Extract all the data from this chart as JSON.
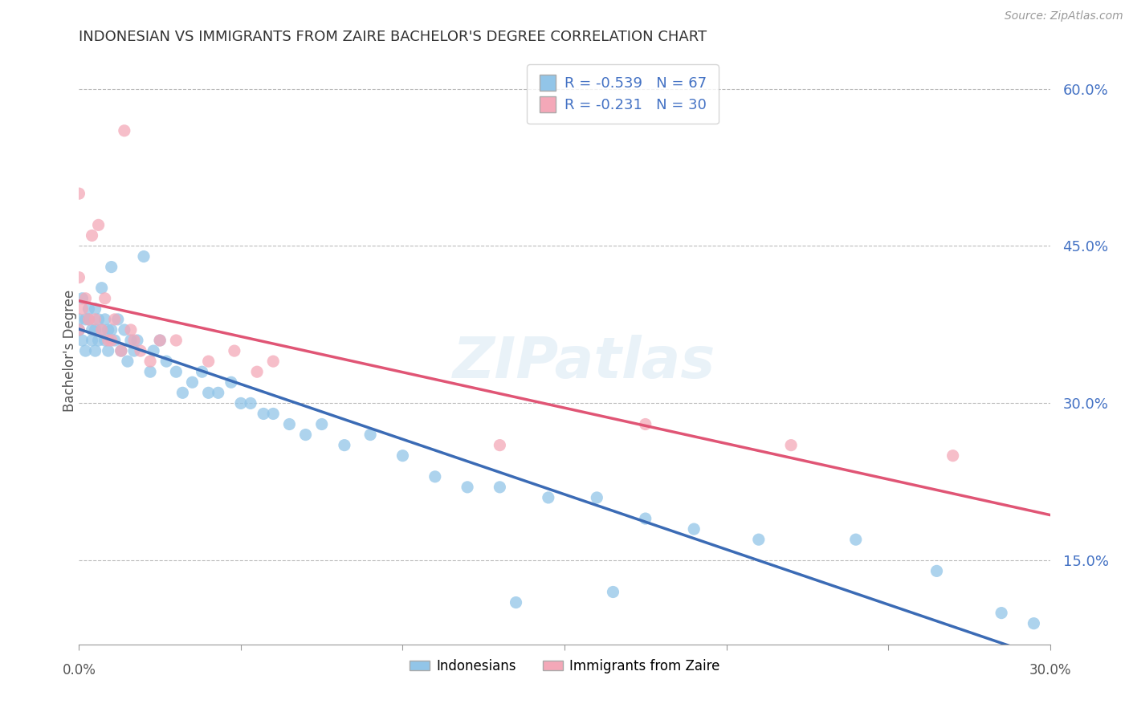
{
  "title": "INDONESIAN VS IMMIGRANTS FROM ZAIRE BACHELOR'S DEGREE CORRELATION CHART",
  "source": "Source: ZipAtlas.com",
  "ylabel": "Bachelor's Degree",
  "xlim": [
    0.0,
    0.3
  ],
  "ylim": [
    0.07,
    0.63
  ],
  "blue_color": "#92C5E8",
  "pink_color": "#F4A8B8",
  "line_blue": "#3B6BB5",
  "line_pink": "#E05575",
  "watermark": "ZIPatlas",
  "legend_text1": "R = -0.539   N = 67",
  "legend_text2": "R = -0.231   N = 30",
  "indonesians_x": [
    0.0,
    0.0,
    0.001,
    0.001,
    0.002,
    0.002,
    0.003,
    0.003,
    0.004,
    0.004,
    0.005,
    0.005,
    0.005,
    0.006,
    0.006,
    0.007,
    0.007,
    0.008,
    0.008,
    0.009,
    0.009,
    0.01,
    0.01,
    0.011,
    0.012,
    0.013,
    0.014,
    0.015,
    0.016,
    0.017,
    0.018,
    0.02,
    0.022,
    0.023,
    0.025,
    0.027,
    0.03,
    0.032,
    0.035,
    0.038,
    0.04,
    0.043,
    0.047,
    0.05,
    0.053,
    0.057,
    0.06,
    0.065,
    0.07,
    0.075,
    0.082,
    0.09,
    0.1,
    0.11,
    0.12,
    0.13,
    0.145,
    0.16,
    0.175,
    0.19,
    0.21,
    0.24,
    0.265,
    0.285,
    0.295,
    0.165,
    0.135
  ],
  "indonesians_y": [
    0.37,
    0.38,
    0.36,
    0.4,
    0.35,
    0.38,
    0.38,
    0.39,
    0.36,
    0.37,
    0.35,
    0.37,
    0.39,
    0.36,
    0.38,
    0.37,
    0.41,
    0.36,
    0.38,
    0.35,
    0.37,
    0.37,
    0.43,
    0.36,
    0.38,
    0.35,
    0.37,
    0.34,
    0.36,
    0.35,
    0.36,
    0.44,
    0.33,
    0.35,
    0.36,
    0.34,
    0.33,
    0.31,
    0.32,
    0.33,
    0.31,
    0.31,
    0.32,
    0.3,
    0.3,
    0.29,
    0.29,
    0.28,
    0.27,
    0.28,
    0.26,
    0.27,
    0.25,
    0.23,
    0.22,
    0.22,
    0.21,
    0.21,
    0.19,
    0.18,
    0.17,
    0.17,
    0.14,
    0.1,
    0.09,
    0.12,
    0.11
  ],
  "zaire_x": [
    0.0,
    0.0,
    0.0,
    0.001,
    0.002,
    0.003,
    0.004,
    0.005,
    0.006,
    0.007,
    0.008,
    0.009,
    0.01,
    0.011,
    0.013,
    0.014,
    0.016,
    0.017,
    0.019,
    0.022,
    0.025,
    0.03,
    0.04,
    0.048,
    0.055,
    0.06,
    0.13,
    0.175,
    0.22,
    0.27
  ],
  "zaire_y": [
    0.37,
    0.42,
    0.5,
    0.39,
    0.4,
    0.38,
    0.46,
    0.38,
    0.47,
    0.37,
    0.4,
    0.36,
    0.36,
    0.38,
    0.35,
    0.56,
    0.37,
    0.36,
    0.35,
    0.34,
    0.36,
    0.36,
    0.34,
    0.35,
    0.33,
    0.34,
    0.26,
    0.28,
    0.26,
    0.25
  ],
  "ytick_vals": [
    0.15,
    0.3,
    0.45,
    0.6
  ],
  "ytick_labels": [
    "15.0%",
    "30.0%",
    "45.0%",
    "60.0%"
  ]
}
